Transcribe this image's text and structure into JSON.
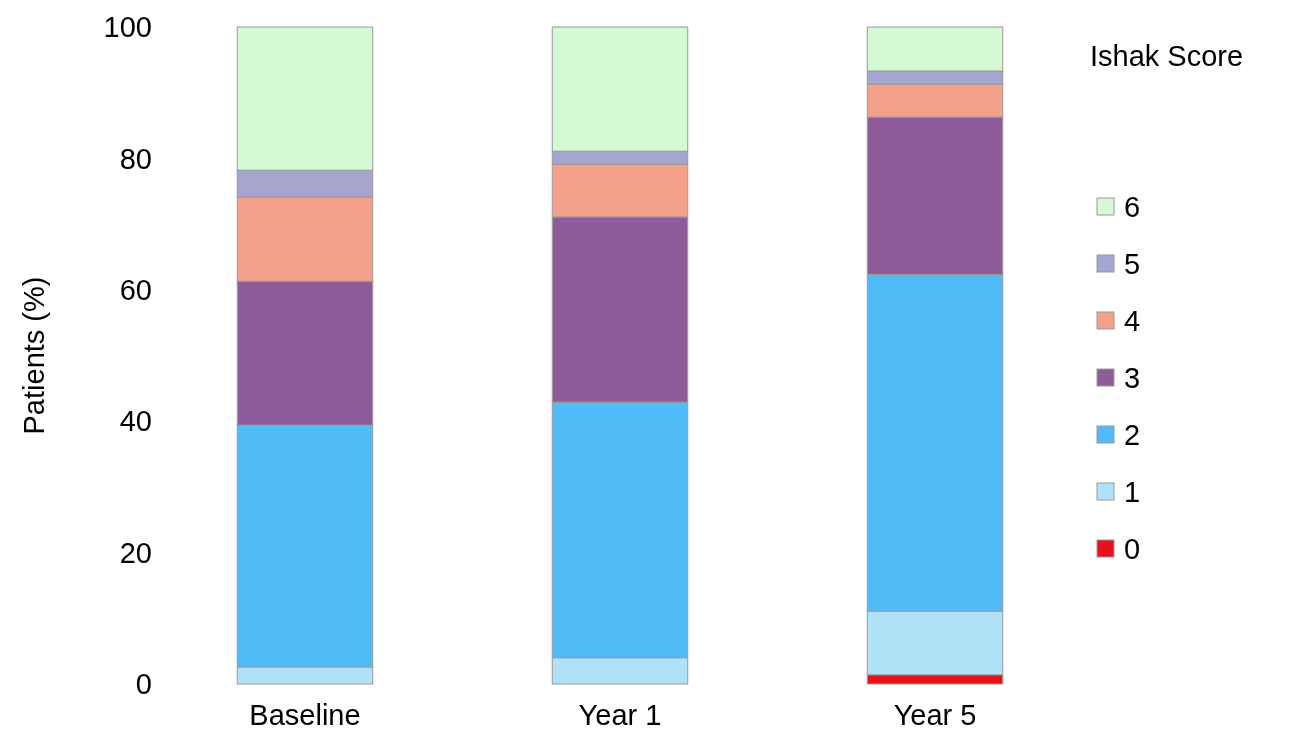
{
  "chart_data": {
    "type": "bar",
    "stacked": true,
    "ylabel": "Patients (%)",
    "legend_title": "Ishak Score",
    "legend": "right",
    "categories": [
      "Baseline",
      "Year 1",
      "Year 5"
    ],
    "ylim": [
      0,
      100
    ],
    "yticks": [
      0,
      20,
      40,
      60,
      80,
      100
    ],
    "grid": false,
    "series": [
      {
        "name": "0",
        "color": "#e8101a",
        "values": [
          0,
          0,
          1.4
        ]
      },
      {
        "name": "1",
        "color": "#b0e2f7",
        "values": [
          2.6,
          4,
          9.7
        ]
      },
      {
        "name": "2",
        "color": "#4fbcf8",
        "values": [
          36.8,
          38.9,
          51.2
        ]
      },
      {
        "name": "3",
        "color": "#8e5c99",
        "values": [
          21.9,
          28.2,
          24
        ]
      },
      {
        "name": "4",
        "color": "#f4a18b",
        "values": [
          12.8,
          8,
          5
        ]
      },
      {
        "name": "5",
        "color": "#a5a5cf",
        "values": [
          4.1,
          2,
          2
        ]
      },
      {
        "name": "6",
        "color": "#d5f9d3",
        "values": [
          21.8,
          18.9,
          6.7
        ]
      }
    ]
  }
}
